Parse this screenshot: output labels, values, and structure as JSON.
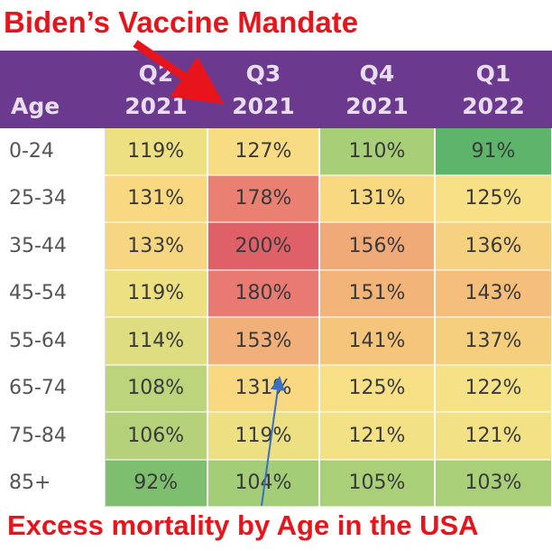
{
  "header_title": "Biden’s Vaccine Mandate",
  "footer_title": "Excess mortality by Age in the USA",
  "chart_data": {
    "type": "heatmap",
    "row_header": "Age",
    "columns": [
      {
        "line1": "Q2",
        "line2": "2021"
      },
      {
        "line1": "Q3",
        "line2": "2021"
      },
      {
        "line1": "Q4",
        "line2": "2021"
      },
      {
        "line1": "Q1",
        "line2": "2022"
      }
    ],
    "rows": [
      {
        "age": "0-24",
        "values": [
          "119%",
          "127%",
          "110%",
          "91%"
        ]
      },
      {
        "age": "25-34",
        "values": [
          "131%",
          "178%",
          "131%",
          "125%"
        ]
      },
      {
        "age": "35-44",
        "values": [
          "133%",
          "200%",
          "156%",
          "136%"
        ]
      },
      {
        "age": "45-54",
        "values": [
          "119%",
          "180%",
          "151%",
          "143%"
        ]
      },
      {
        "age": "55-64",
        "values": [
          "114%",
          "153%",
          "141%",
          "137%"
        ]
      },
      {
        "age": "65-74",
        "values": [
          "108%",
          "131%",
          "125%",
          "122%"
        ]
      },
      {
        "age": "75-84",
        "values": [
          "106%",
          "119%",
          "121%",
          "121%"
        ]
      },
      {
        "age": "85+",
        "values": [
          "92%",
          "104%",
          "105%",
          "103%"
        ]
      }
    ],
    "colors": {
      "header_bg": "#6b3a8e",
      "title_red": "#e8141c",
      "arrow_red": "#e8141c",
      "arrow_blue": "#3a6fc4",
      "scale": {
        "91": "#5db56b",
        "92": "#7dbf6e",
        "103": "#a9cf78",
        "104": "#a3cd77",
        "105": "#a9cf78",
        "106": "#b5d27a",
        "108": "#bcd47c",
        "110": "#a6cf78",
        "114": "#dedd82",
        "119": "#ece082",
        "121": "#f3e285",
        "122": "#f5e286",
        "125": "#f7e086",
        "127": "#f8dc84",
        "131": "#f8d880",
        "133": "#f6d680",
        "136": "#f6d17f",
        "137": "#f6cf7e",
        "141": "#f6c57c",
        "143": "#f5be7b",
        "151": "#f3b47a",
        "153": "#f1af79",
        "156": "#f0aa78",
        "178": "#ea8072",
        "180": "#e87a72",
        "200": "#df6167"
      }
    }
  }
}
